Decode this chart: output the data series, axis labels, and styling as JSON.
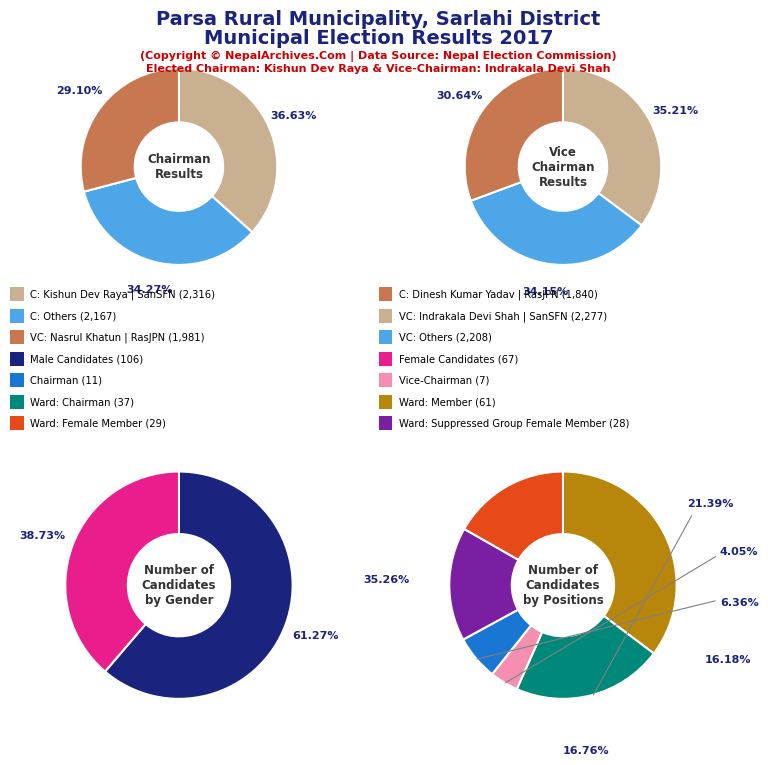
{
  "title_line1": "Parsa Rural Municipality, Sarlahi District",
  "title_line2": "Municipal Election Results 2017",
  "subtitle1": "(Copyright © NepalArchives.Com | Data Source: Nepal Election Commission)",
  "subtitle2": "Elected Chairman: Kishun Dev Raya & Vice-Chairman: Indrakala Devi Shah",
  "chairman_values": [
    36.63,
    34.27,
    29.1
  ],
  "chairman_colors": [
    "#c8b090",
    "#4da6e8",
    "#c87850"
  ],
  "chairman_labels": [
    "36.63%",
    "34.27%",
    "29.10%"
  ],
  "chairman_center": "Chairman\nResults",
  "vicechairman_values": [
    35.21,
    34.15,
    30.64
  ],
  "vicechairman_colors": [
    "#c8b090",
    "#4da6e8",
    "#c87850"
  ],
  "vicechairman_labels": [
    "35.21%",
    "34.15%",
    "30.64%"
  ],
  "vicechairman_center": "Vice\nChairman\nResults",
  "gender_values": [
    61.27,
    38.73
  ],
  "gender_colors": [
    "#1a237e",
    "#e91e8c"
  ],
  "gender_labels": [
    "61.27%",
    "38.73%"
  ],
  "gender_center": "Number of\nCandidates\nby Gender",
  "positions_values": [
    35.26,
    21.39,
    4.05,
    6.36,
    16.18,
    16.76
  ],
  "positions_colors": [
    "#b8860b",
    "#00897b",
    "#f48fb1",
    "#1976d2",
    "#7b1fa2",
    "#e64a19"
  ],
  "positions_labels": [
    "35.26%",
    "21.39%",
    "4.05%",
    "6.36%",
    "16.18%",
    "16.76%"
  ],
  "positions_center": "Number of\nCandidates\nby Positions",
  "legend_items": [
    {
      "label": "C: Kishun Dev Raya | SanSFN (2,316)",
      "color": "#c8b090"
    },
    {
      "label": "C: Others (2,167)",
      "color": "#4da6e8"
    },
    {
      "label": "VC: Nasrul Khatun | RasJPN (1,981)",
      "color": "#c87850"
    },
    {
      "label": "Male Candidates (106)",
      "color": "#1a237e"
    },
    {
      "label": "Chairman (11)",
      "color": "#1976d2"
    },
    {
      "label": "Ward: Chairman (37)",
      "color": "#00897b"
    },
    {
      "label": "Ward: Female Member (29)",
      "color": "#e64a19"
    },
    {
      "label": "C: Dinesh Kumar Yadav | RasJPN (1,840)",
      "color": "#c87850"
    },
    {
      "label": "VC: Indrakala Devi Shah | SanSFN (2,277)",
      "color": "#c8b090"
    },
    {
      "label": "VC: Others (2,208)",
      "color": "#4da6e8"
    },
    {
      "label": "Female Candidates (67)",
      "color": "#e91e8c"
    },
    {
      "label": "Vice-Chairman (7)",
      "color": "#f48fb1"
    },
    {
      "label": "Ward: Member (61)",
      "color": "#b8860b"
    },
    {
      "label": "Ward: Suppressed Group Female Member (28)",
      "color": "#7b1fa2"
    }
  ],
  "title_color": "#1a237e",
  "subtitle_color": "#cc0000",
  "label_color": "#1a237e",
  "bg_color": "#ffffff"
}
